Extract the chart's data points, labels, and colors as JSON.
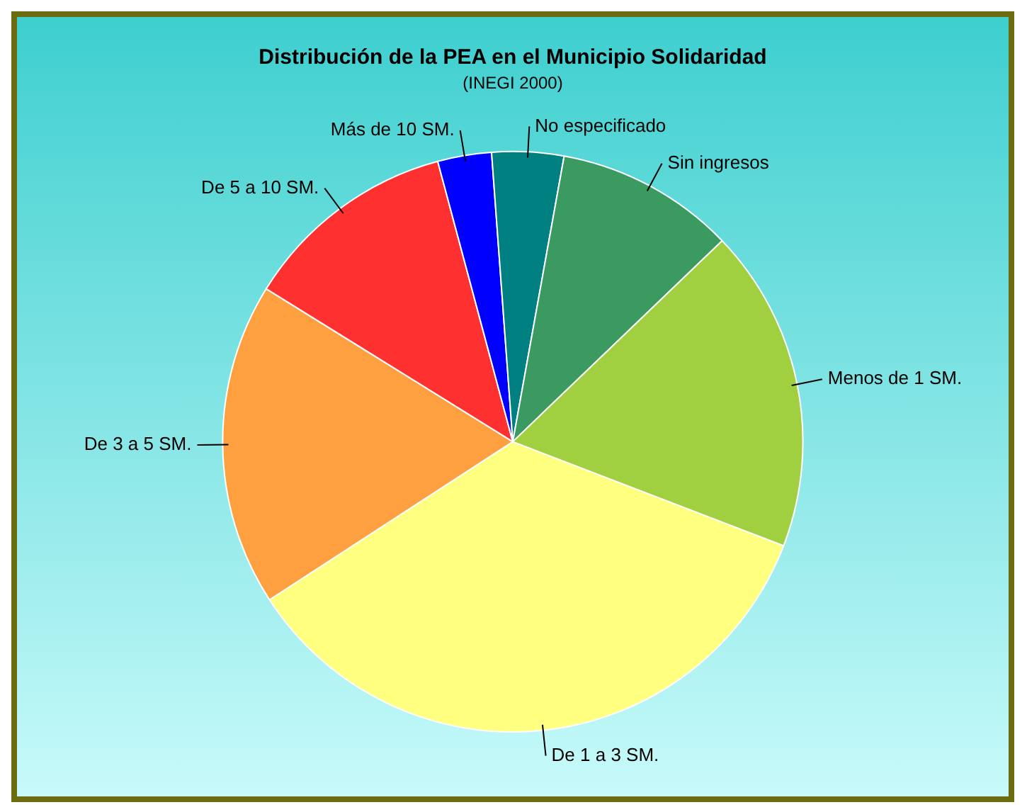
{
  "chart_data": {
    "type": "pie",
    "title": "Distribución de la PEA en el Municipio Solidaridad",
    "subtitle": "(INEGI 2000)",
    "categories": [
      "De 1 a 3 SM.",
      "De 3 a 5 SM.",
      "De 5 a 10 SM.",
      "Más de 10 SM.",
      "No especificado",
      "Sin ingresos",
      "Menos de 1 SM."
    ],
    "values": [
      35,
      18,
      12,
      3,
      4,
      10,
      18
    ],
    "colors": [
      "#ffff80",
      "#ffa040",
      "#ff3030",
      "#0000ff",
      "#008080",
      "#3a9a60",
      "#a0d040"
    ],
    "legend": false
  }
}
